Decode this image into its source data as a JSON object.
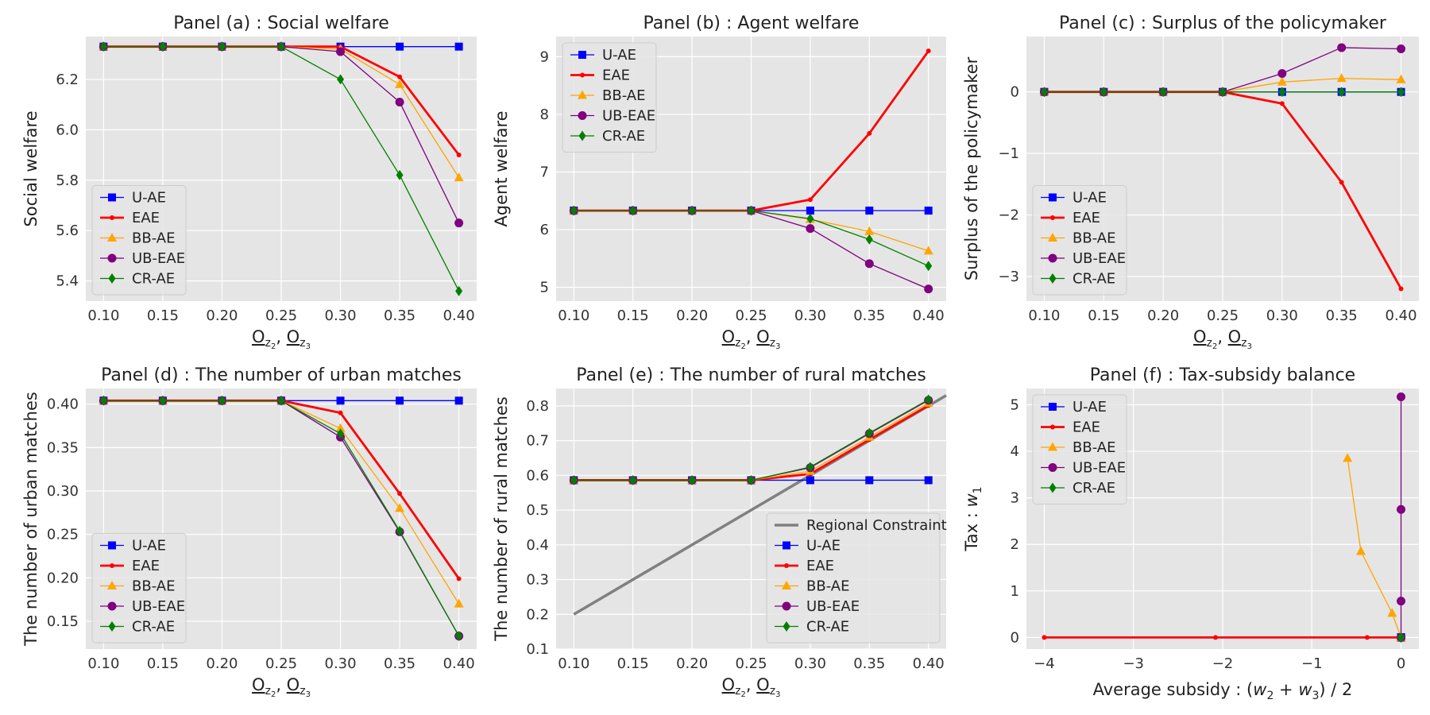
{
  "series_styles": {
    "U-AE": {
      "color": "#0000ff",
      "marker": "square",
      "width": 1.3
    },
    "EAE": {
      "color": "#ff0000",
      "marker": "dot",
      "width": 2.8
    },
    "BB-AE": {
      "color": "#ffa500",
      "marker": "triangle",
      "width": 1.3
    },
    "UB-EAE": {
      "color": "#800080",
      "marker": "circle",
      "width": 1.3
    },
    "CR-AE": {
      "color": "#008000",
      "marker": "diamond",
      "width": 1.3
    },
    "Regional Constraint": {
      "color": "#808080",
      "marker": "none",
      "width": 3.5
    }
  },
  "chart_data": [
    {
      "id": "a",
      "type": "line",
      "title": "Panel (a) : Social welfare",
      "xlabel": "O_z2, O_z3",
      "ylabel": "Social welfare",
      "xlim": [
        0.085,
        0.415
      ],
      "ylim": [
        5.32,
        6.37
      ],
      "xticks": [
        0.1,
        0.15,
        0.2,
        0.25,
        0.3,
        0.35,
        0.4
      ],
      "xtick_labels": [
        "0.10",
        "0.15",
        "0.20",
        "0.25",
        "0.30",
        "0.35",
        "0.40"
      ],
      "yticks": [
        5.4,
        5.6,
        5.8,
        6.0,
        6.2
      ],
      "ytick_labels": [
        "5.4",
        "5.6",
        "5.8",
        "6.0",
        "6.2"
      ],
      "x": [
        0.1,
        0.15,
        0.2,
        0.25,
        0.3,
        0.35,
        0.4
      ],
      "legend_position": "lower-left",
      "series": [
        {
          "name": "U-AE",
          "values": [
            6.33,
            6.33,
            6.33,
            6.33,
            6.33,
            6.33,
            6.33
          ]
        },
        {
          "name": "EAE",
          "values": [
            6.33,
            6.33,
            6.33,
            6.33,
            6.33,
            6.21,
            5.9
          ]
        },
        {
          "name": "BB-AE",
          "values": [
            6.33,
            6.33,
            6.33,
            6.33,
            6.32,
            6.18,
            5.81
          ]
        },
        {
          "name": "UB-EAE",
          "values": [
            6.33,
            6.33,
            6.33,
            6.33,
            6.31,
            6.11,
            5.63
          ]
        },
        {
          "name": "CR-AE",
          "values": [
            6.33,
            6.33,
            6.33,
            6.33,
            6.2,
            5.82,
            5.36
          ]
        }
      ]
    },
    {
      "id": "b",
      "type": "line",
      "title": "Panel (b) : Agent welfare",
      "xlabel": "O_z2, O_z3",
      "ylabel": "Agent welfare",
      "xlim": [
        0.085,
        0.415
      ],
      "ylim": [
        4.76,
        9.35
      ],
      "xticks": [
        0.1,
        0.15,
        0.2,
        0.25,
        0.3,
        0.35,
        0.4
      ],
      "xtick_labels": [
        "0.10",
        "0.15",
        "0.20",
        "0.25",
        "0.30",
        "0.35",
        "0.40"
      ],
      "yticks": [
        5,
        6,
        7,
        8,
        9
      ],
      "ytick_labels": [
        "5",
        "6",
        "7",
        "8",
        "9"
      ],
      "x": [
        0.1,
        0.15,
        0.2,
        0.25,
        0.3,
        0.35,
        0.4
      ],
      "legend_position": "upper-left",
      "series": [
        {
          "name": "U-AE",
          "values": [
            6.33,
            6.33,
            6.33,
            6.33,
            6.33,
            6.33,
            6.33
          ]
        },
        {
          "name": "EAE",
          "values": [
            6.33,
            6.33,
            6.33,
            6.33,
            6.52,
            7.67,
            9.1
          ]
        },
        {
          "name": "BB-AE",
          "values": [
            6.33,
            6.33,
            6.33,
            6.33,
            6.18,
            5.97,
            5.63
          ]
        },
        {
          "name": "UB-EAE",
          "values": [
            6.33,
            6.33,
            6.33,
            6.33,
            6.02,
            5.41,
            4.97
          ]
        },
        {
          "name": "CR-AE",
          "values": [
            6.33,
            6.33,
            6.33,
            6.33,
            6.19,
            5.83,
            5.37
          ]
        }
      ]
    },
    {
      "id": "c",
      "type": "line",
      "title": "Panel (c) : Surplus of the policymaker",
      "xlabel": "O_z2, O_z3",
      "ylabel": "Surplus of the policymaker",
      "xlim": [
        0.085,
        0.415
      ],
      "ylim": [
        -3.4,
        0.9
      ],
      "xticks": [
        0.1,
        0.15,
        0.2,
        0.25,
        0.3,
        0.35,
        0.4
      ],
      "xtick_labels": [
        "0.10",
        "0.15",
        "0.20",
        "0.25",
        "0.30",
        "0.35",
        "0.40"
      ],
      "yticks": [
        -3,
        -2,
        -1,
        0
      ],
      "ytick_labels": [
        "−3",
        "−2",
        "−1",
        "0"
      ],
      "x": [
        0.1,
        0.15,
        0.2,
        0.25,
        0.3,
        0.35,
        0.4
      ],
      "legend_position": "lower-left",
      "series": [
        {
          "name": "U-AE",
          "values": [
            0,
            0,
            0,
            0,
            0,
            0,
            0
          ]
        },
        {
          "name": "EAE",
          "values": [
            0,
            0,
            0,
            0,
            -0.19,
            -1.47,
            -3.2
          ]
        },
        {
          "name": "BB-AE",
          "values": [
            0,
            0,
            0,
            0,
            0.16,
            0.22,
            0.2
          ]
        },
        {
          "name": "UB-EAE",
          "values": [
            0,
            0,
            0,
            0,
            0.3,
            0.72,
            0.7
          ]
        },
        {
          "name": "CR-AE",
          "values": [
            0,
            0,
            0,
            0,
            0,
            0,
            0
          ]
        }
      ]
    },
    {
      "id": "d",
      "type": "line",
      "title": "Panel (d) : The number of urban matches",
      "xlabel": "O_z2, O_z3",
      "ylabel": "The number of urban matches",
      "xlim": [
        0.085,
        0.415
      ],
      "ylim": [
        0.118,
        0.418
      ],
      "xticks": [
        0.1,
        0.15,
        0.2,
        0.25,
        0.3,
        0.35,
        0.4
      ],
      "xtick_labels": [
        "0.10",
        "0.15",
        "0.20",
        "0.25",
        "0.30",
        "0.35",
        "0.40"
      ],
      "yticks": [
        0.15,
        0.2,
        0.25,
        0.3,
        0.35,
        0.4
      ],
      "ytick_labels": [
        "0.15",
        "0.20",
        "0.25",
        "0.30",
        "0.35",
        "0.40"
      ],
      "x": [
        0.1,
        0.15,
        0.2,
        0.25,
        0.3,
        0.35,
        0.4
      ],
      "legend_position": "lower-left",
      "series": [
        {
          "name": "U-AE",
          "values": [
            0.404,
            0.404,
            0.404,
            0.404,
            0.404,
            0.404,
            0.404
          ]
        },
        {
          "name": "EAE",
          "values": [
            0.404,
            0.404,
            0.404,
            0.404,
            0.39,
            0.297,
            0.199
          ]
        },
        {
          "name": "BB-AE",
          "values": [
            0.404,
            0.404,
            0.404,
            0.404,
            0.372,
            0.28,
            0.17
          ]
        },
        {
          "name": "UB-EAE",
          "values": [
            0.404,
            0.404,
            0.404,
            0.404,
            0.362,
            0.253,
            0.133
          ]
        },
        {
          "name": "CR-AE",
          "values": [
            0.404,
            0.404,
            0.404,
            0.404,
            0.366,
            0.254,
            0.133
          ]
        }
      ]
    },
    {
      "id": "e",
      "type": "line",
      "title": "Panel (e) : The number of rural matches",
      "xlabel": "O_z2, O_z3",
      "ylabel": "The number of rural matches",
      "xlim": [
        0.085,
        0.415
      ],
      "ylim": [
        0.1,
        0.85
      ],
      "xticks": [
        0.1,
        0.15,
        0.2,
        0.25,
        0.3,
        0.35,
        0.4
      ],
      "xtick_labels": [
        "0.10",
        "0.15",
        "0.20",
        "0.25",
        "0.30",
        "0.35",
        "0.40"
      ],
      "yticks": [
        0.1,
        0.2,
        0.3,
        0.4,
        0.5,
        0.6,
        0.7,
        0.8
      ],
      "ytick_labels": [
        "0.1",
        "0.2",
        "0.3",
        "0.4",
        "0.5",
        "0.6",
        "0.7",
        "0.8"
      ],
      "x": [
        0.1,
        0.15,
        0.2,
        0.25,
        0.3,
        0.35,
        0.4
      ],
      "legend_position": "lower-right",
      "series": [
        {
          "name": "Regional Constraint",
          "x": [
            0.1,
            0.415
          ],
          "values": [
            0.2,
            0.83
          ]
        },
        {
          "name": "U-AE",
          "values": [
            0.586,
            0.586,
            0.586,
            0.586,
            0.586,
            0.586,
            0.586
          ]
        },
        {
          "name": "EAE",
          "values": [
            0.586,
            0.586,
            0.586,
            0.586,
            0.604,
            0.703,
            0.801
          ]
        },
        {
          "name": "BB-AE",
          "values": [
            0.586,
            0.586,
            0.586,
            0.586,
            0.612,
            0.71,
            0.808
          ]
        },
        {
          "name": "UB-EAE",
          "values": [
            0.586,
            0.586,
            0.586,
            0.586,
            0.622,
            0.72,
            0.816
          ]
        },
        {
          "name": "CR-AE",
          "values": [
            0.586,
            0.586,
            0.586,
            0.586,
            0.624,
            0.722,
            0.818
          ]
        }
      ]
    },
    {
      "id": "f",
      "type": "line",
      "title": "Panel (f) : Tax-subsidy balance",
      "xlabel": "Average subsidy : (w_2 + w_3) / 2",
      "ylabel": "Tax : w_1",
      "xlim": [
        -4.2,
        0.2
      ],
      "ylim": [
        -0.25,
        5.35
      ],
      "xticks": [
        -4,
        -3,
        -2,
        -1,
        0
      ],
      "xtick_labels": [
        "−4",
        "−3",
        "−2",
        "−1",
        "0"
      ],
      "yticks": [
        0,
        1,
        2,
        3,
        4,
        5
      ],
      "ytick_labels": [
        "0",
        "1",
        "2",
        "3",
        "4",
        "5"
      ],
      "legend_position": "upper-left",
      "series": [
        {
          "name": "U-AE",
          "x": [
            0,
            0,
            0,
            0,
            0,
            0,
            0
          ],
          "values": [
            0,
            0,
            0,
            0,
            0,
            0,
            0
          ]
        },
        {
          "name": "EAE",
          "x": [
            0,
            0,
            0,
            0,
            -0.38,
            -2.08,
            -4.0
          ],
          "values": [
            0,
            0,
            0,
            0,
            0,
            0,
            0
          ]
        },
        {
          "name": "BB-AE",
          "x": [
            0,
            0,
            0,
            0,
            -0.1,
            -0.45,
            -0.6
          ],
          "values": [
            0,
            0,
            0,
            0,
            0.52,
            1.85,
            3.85
          ]
        },
        {
          "name": "UB-EAE",
          "x": [
            0,
            0,
            0,
            0,
            0,
            0,
            0
          ],
          "values": [
            0,
            0,
            0,
            0,
            0.78,
            2.75,
            5.17
          ]
        },
        {
          "name": "CR-AE",
          "x": [
            0,
            0,
            0,
            0,
            0,
            0,
            0
          ],
          "values": [
            0,
            0,
            0,
            0,
            0,
            0,
            0
          ]
        }
      ]
    }
  ]
}
